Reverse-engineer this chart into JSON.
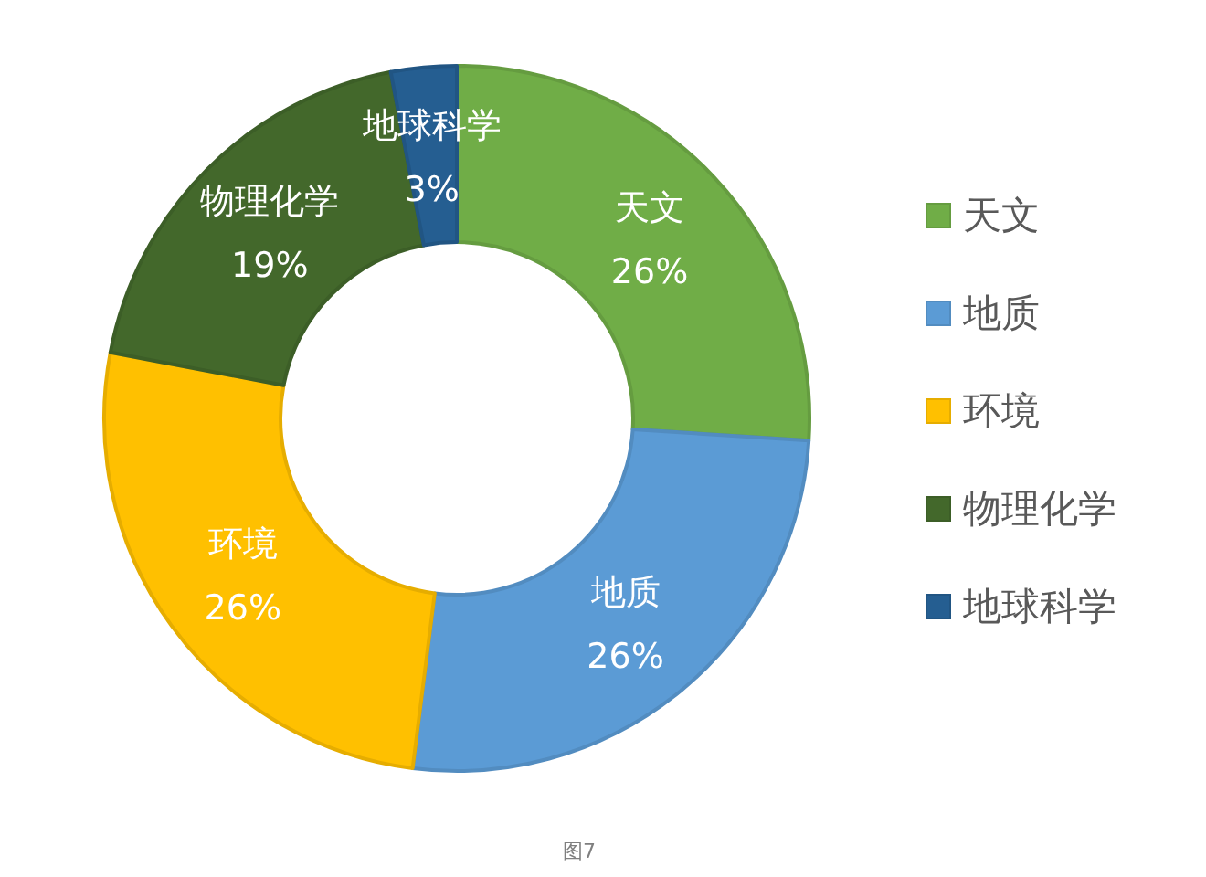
{
  "chart_data": {
    "type": "donut",
    "categories": [
      "天文",
      "地质",
      "环境",
      "物理化学",
      "地球科学"
    ],
    "values": [
      26,
      26,
      26,
      19,
      3
    ],
    "colors": [
      "#70ad47",
      "#5b9bd5",
      "#ffc000",
      "#43682b",
      "#255e91"
    ],
    "value_labels": [
      "26%",
      "26%",
      "26%",
      "19%",
      "3%"
    ],
    "legend": "right",
    "annotations": [
      "图7"
    ]
  }
}
